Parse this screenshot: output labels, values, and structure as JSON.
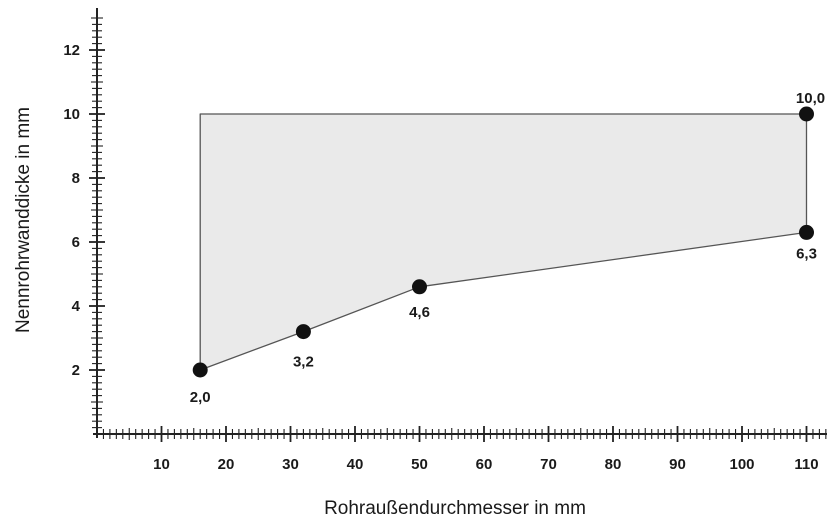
{
  "chart_data": {
    "type": "area",
    "xlabel": "Rohraußendurchmesser in mm",
    "ylabel": "Nennrohrwanddicke in mm",
    "xlim": [
      0,
      112
    ],
    "ylim": [
      0,
      13
    ],
    "x_ticks": [
      10,
      20,
      30,
      40,
      50,
      60,
      70,
      80,
      90,
      100,
      110
    ],
    "x_tick_labels": [
      "10",
      "20",
      "30",
      "40",
      "50",
      "60",
      "70",
      "80",
      "90",
      "100",
      "110"
    ],
    "y_ticks": [
      2,
      4,
      6,
      8,
      10,
      12
    ],
    "y_tick_labels": [
      "2",
      "4",
      "6",
      "8",
      "10",
      "12"
    ],
    "minor_tick_step": 1,
    "grid": false,
    "fill_color": "#eaeaea",
    "line_color": "#555555",
    "point_color": "#111111",
    "region": [
      {
        "x": 16,
        "y": 10.0
      },
      {
        "x": 110,
        "y": 10.0
      },
      {
        "x": 110,
        "y": 6.3
      },
      {
        "x": 50,
        "y": 4.6
      },
      {
        "x": 32,
        "y": 3.2
      },
      {
        "x": 16,
        "y": 2.0
      }
    ],
    "points": [
      {
        "x": 16,
        "y": 2.0,
        "label": "2,0"
      },
      {
        "x": 32,
        "y": 3.2,
        "label": "3,2"
      },
      {
        "x": 50,
        "y": 4.6,
        "label": "4,6"
      },
      {
        "x": 110,
        "y": 6.3,
        "label": "6,3"
      },
      {
        "x": 110,
        "y": 10.0,
        "label": "10,0"
      }
    ]
  }
}
